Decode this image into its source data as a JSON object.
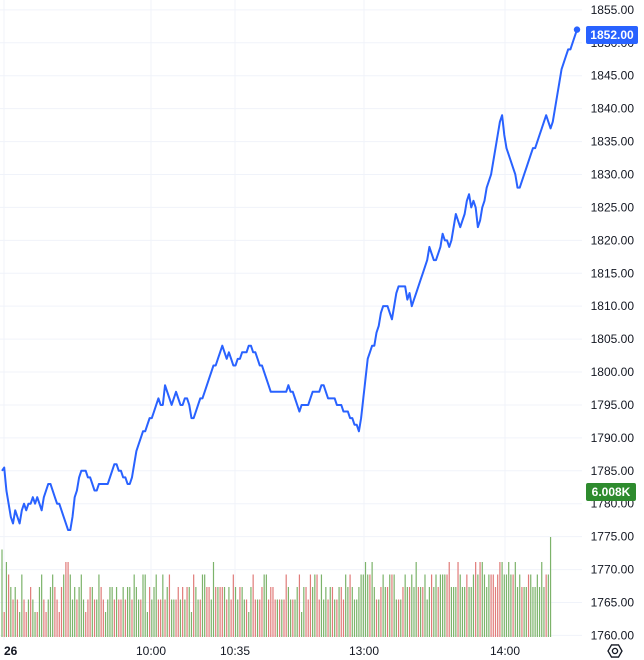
{
  "colors": {
    "line": "#2962ff",
    "vol_up": "#7cb36a",
    "vol_down": "#e07b79",
    "grid": "#f0f3fa",
    "price_badge": "#2962ff",
    "vol_badge": "#2e8b2e",
    "text": "#131722"
  },
  "icons": {
    "settings": "gear-icon"
  },
  "chart_data": {
    "type": "line",
    "title": "",
    "x_ticks": [
      "26",
      "10:00",
      "10:35",
      "13:00",
      "14:00"
    ],
    "y_ticks": [
      1760,
      1765,
      1770,
      1775,
      1780,
      1785,
      1790,
      1795,
      1800,
      1805,
      1810,
      1815,
      1820,
      1825,
      1830,
      1835,
      1840,
      1845,
      1850,
      1855
    ],
    "ylim": [
      1759,
      1856.5
    ],
    "grid": true,
    "price_badge": "1852.00",
    "volume_badge": "6.008K",
    "series": [
      {
        "values": [
          1785,
          1785.5,
          1782,
          1780,
          1778,
          1777,
          1779,
          1778,
          1777,
          1779,
          1780,
          1779,
          1780,
          1780,
          1781,
          1780,
          1781,
          1780,
          1779,
          1781,
          1782,
          1783,
          1783,
          1782,
          1781,
          1780,
          1780,
          1779,
          1778,
          1777,
          1776,
          1776,
          1778,
          1781,
          1782,
          1784,
          1785,
          1785,
          1785,
          1784,
          1784,
          1783,
          1782,
          1782,
          1783,
          1783,
          1783,
          1783,
          1783,
          1784,
          1785,
          1786,
          1786,
          1785,
          1785,
          1784,
          1784,
          1783,
          1783,
          1784,
          1786,
          1788,
          1789,
          1790,
          1791,
          1791,
          1792,
          1793,
          1793,
          1794,
          1795,
          1796,
          1795,
          1795,
          1798,
          1797,
          1796,
          1795,
          1796,
          1797,
          1796,
          1795,
          1795,
          1796,
          1796,
          1795,
          1793,
          1793,
          1794,
          1795,
          1796,
          1796,
          1797,
          1798,
          1799,
          1800,
          1801,
          1801,
          1802,
          1803,
          1804,
          1803,
          1802,
          1803,
          1802,
          1801,
          1801,
          1802,
          1802,
          1803,
          1803,
          1803,
          1804,
          1804,
          1803,
          1803,
          1802,
          1801,
          1801,
          1800,
          1799,
          1798,
          1797,
          1797,
          1797,
          1797,
          1797,
          1797,
          1797,
          1797,
          1798,
          1797,
          1797,
          1796,
          1795,
          1794,
          1795,
          1795,
          1795,
          1795,
          1796,
          1797,
          1797,
          1797,
          1797,
          1798,
          1798,
          1797,
          1796,
          1796,
          1796,
          1796,
          1795,
          1795,
          1795,
          1794,
          1794,
          1794,
          1793,
          1793,
          1792,
          1792,
          1791,
          1793,
          1796,
          1799,
          1802,
          1803,
          1804,
          1804,
          1806,
          1807,
          1809,
          1810,
          1810,
          1810,
          1809,
          1808,
          1810,
          1812,
          1813,
          1813,
          1813,
          1813,
          1811,
          1812,
          1810,
          1811,
          1812,
          1813,
          1814,
          1815,
          1816,
          1817,
          1819,
          1818,
          1817,
          1817,
          1818,
          1819,
          1821,
          1820,
          1820,
          1819,
          1820,
          1822,
          1824,
          1823,
          1822,
          1823,
          1824,
          1826,
          1827,
          1825,
          1826,
          1825,
          1822,
          1823,
          1825,
          1826,
          1828,
          1829,
          1830,
          1832,
          1834,
          1836,
          1838,
          1839,
          1836,
          1834,
          1833,
          1832,
          1831,
          1830,
          1828,
          1828,
          1829,
          1830,
          1831,
          1832,
          1833,
          1834,
          1834,
          1835,
          1836,
          1837,
          1838,
          1839,
          1838,
          1837,
          1838,
          1840,
          1842,
          1844,
          1846,
          1847,
          1848,
          1849,
          1849,
          1850,
          1851,
          1852
        ]
      }
    ],
    "volume": [
      7,
      2,
      6,
      5,
      4,
      3,
      4,
      3,
      2,
      5,
      3,
      2,
      3,
      4,
      3,
      2,
      2,
      4,
      5,
      3,
      2,
      3,
      4,
      5,
      4,
      3,
      2,
      4,
      5,
      6,
      6,
      5,
      3,
      4,
      3,
      4,
      5,
      3,
      2,
      3,
      4,
      4,
      3,
      3,
      5,
      4,
      3,
      2,
      3,
      4,
      4,
      3,
      4,
      3,
      3,
      4,
      3,
      4,
      4,
      3,
      5,
      4,
      3,
      3,
      5,
      5,
      2,
      4,
      3,
      4,
      5,
      3,
      3,
      5,
      3,
      4,
      5,
      3,
      3,
      3,
      4,
      3,
      4,
      3,
      4,
      4,
      2,
      5,
      4,
      3,
      3,
      5,
      5,
      4,
      4,
      3,
      6,
      4,
      4,
      4,
      4,
      4,
      3,
      4,
      3,
      5,
      4,
      3,
      4,
      4,
      3,
      3,
      2,
      4,
      5,
      3,
      3,
      3,
      4,
      5,
      5,
      3,
      4,
      4,
      3,
      3,
      3,
      3,
      3,
      5,
      4,
      3,
      3,
      3,
      4,
      5,
      2,
      4,
      4,
      3,
      5,
      4,
      5,
      5,
      3,
      5,
      3,
      4,
      3,
      4,
      4,
      3,
      3,
      4,
      4,
      3,
      5,
      4,
      5,
      4,
      3,
      3,
      4,
      5,
      5,
      6,
      5,
      5,
      6,
      4,
      3,
      3,
      4,
      5,
      4,
      4,
      5,
      5,
      5,
      3,
      3,
      3,
      4,
      5,
      4,
      4,
      5,
      4,
      6,
      4,
      4,
      4,
      5,
      3,
      4,
      5,
      4,
      5,
      4,
      5,
      5,
      5,
      5,
      6,
      4,
      4,
      4,
      6,
      5,
      4,
      4,
      5,
      4,
      4,
      5,
      6,
      5,
      6,
      6,
      5,
      4,
      5,
      5,
      5,
      4,
      5,
      6,
      6,
      5,
      5,
      6,
      5,
      5,
      6,
      4,
      5,
      4,
      4,
      4,
      5,
      5,
      4,
      4,
      5,
      4,
      6,
      4,
      5,
      5,
      8
    ],
    "volume_direction": [
      "u",
      "d",
      "u",
      "d",
      "u",
      "d",
      "u",
      "d",
      "u",
      "u",
      "d",
      "d",
      "u",
      "d",
      "u",
      "u",
      "d",
      "u",
      "u",
      "d",
      "d",
      "u",
      "u",
      "u",
      "d",
      "d",
      "d",
      "d",
      "u",
      "d",
      "d",
      "u",
      "u",
      "u",
      "d",
      "u",
      "u",
      "u",
      "d",
      "d",
      "d",
      "u",
      "d",
      "u",
      "u",
      "d",
      "d",
      "u",
      "u",
      "u",
      "u",
      "d",
      "u",
      "d",
      "d",
      "u",
      "d",
      "u",
      "u",
      "d",
      "u",
      "u",
      "u",
      "d",
      "u",
      "u",
      "u",
      "d",
      "u",
      "u",
      "u",
      "d",
      "d",
      "u",
      "d",
      "u",
      "d",
      "u",
      "u",
      "d",
      "d",
      "u",
      "d",
      "u",
      "d",
      "u",
      "u",
      "d",
      "u",
      "u",
      "d",
      "u",
      "u",
      "d",
      "d",
      "u",
      "u",
      "d",
      "u",
      "d",
      "d",
      "u",
      "d",
      "u",
      "d",
      "d",
      "u",
      "u",
      "d",
      "u",
      "u",
      "d",
      "u",
      "u",
      "d",
      "d",
      "u",
      "d",
      "d",
      "u",
      "u",
      "d",
      "d",
      "d",
      "d",
      "u",
      "d",
      "u",
      "d",
      "d",
      "u",
      "u",
      "d",
      "u",
      "u",
      "d",
      "u",
      "u",
      "d",
      "d",
      "d",
      "u",
      "u",
      "d",
      "d",
      "u",
      "u",
      "u",
      "d",
      "u",
      "d",
      "u",
      "d",
      "u",
      "d",
      "d",
      "u",
      "u",
      "d",
      "u",
      "u",
      "u",
      "u",
      "u",
      "u",
      "u",
      "u",
      "d",
      "u",
      "u",
      "d",
      "u",
      "d",
      "u",
      "u",
      "d",
      "u",
      "d",
      "u",
      "u",
      "d",
      "u",
      "d",
      "u",
      "u",
      "d",
      "u",
      "u",
      "u",
      "d",
      "u",
      "d",
      "u",
      "u",
      "u",
      "d",
      "u",
      "u",
      "d",
      "u",
      "u",
      "u",
      "d",
      "d",
      "u",
      "u",
      "u",
      "d",
      "u",
      "u",
      "u",
      "d",
      "u",
      "u",
      "u",
      "d",
      "u",
      "d",
      "u",
      "u",
      "u",
      "u",
      "d",
      "d",
      "d",
      "d",
      "d",
      "u",
      "u",
      "u",
      "u",
      "u",
      "d",
      "u",
      "u",
      "u",
      "d",
      "u",
      "u",
      "d",
      "u",
      "u",
      "u",
      "u",
      "u",
      "u",
      "u",
      "d",
      "u",
      "u",
      "u",
      "u",
      "u"
    ]
  }
}
